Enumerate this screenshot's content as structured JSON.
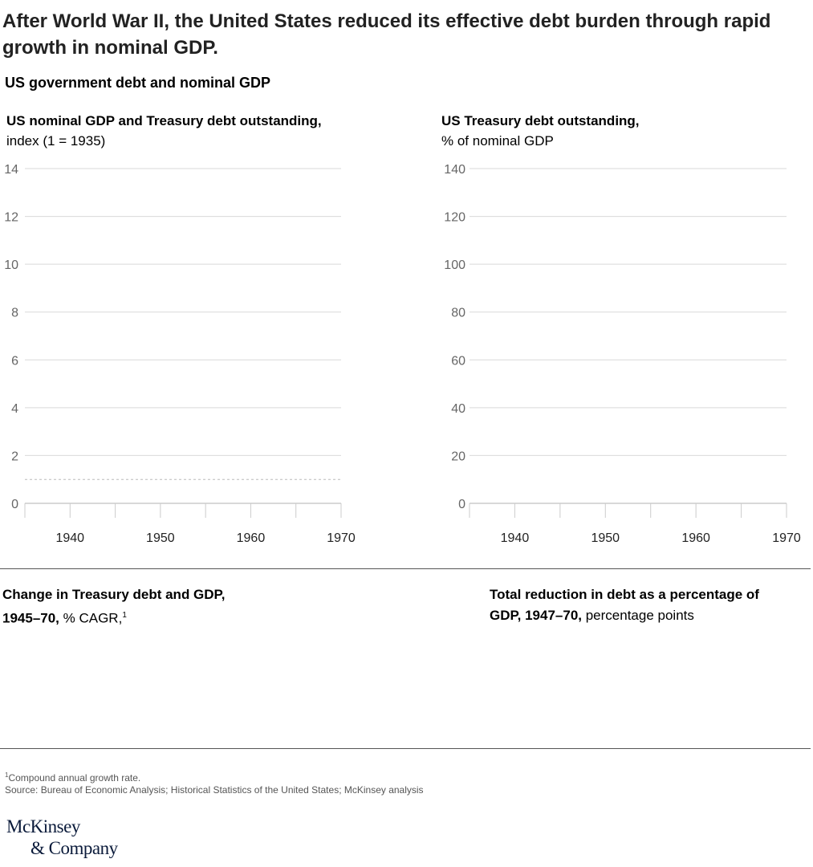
{
  "title": "After World War II, the United States reduced its effective debt burden through rapid growth in nominal GDP.",
  "subtitle": "US government debt and nominal GDP",
  "chart_data": [
    {
      "type": "line",
      "title": "US nominal GDP and Treasury debt outstanding,",
      "unit": "index (1 = 1935)",
      "xlim": [
        1935,
        1970
      ],
      "ylim": [
        0,
        14
      ],
      "x_ticks": [
        1940,
        1950,
        1960,
        1970
      ],
      "y_ticks": [
        0,
        2,
        4,
        6,
        8,
        10,
        12,
        14
      ],
      "reference_line": 1,
      "grid": true,
      "series": []
    },
    {
      "type": "line",
      "title": "US Treasury debt outstanding,",
      "unit": "% of nominal GDP",
      "xlim": [
        1935,
        1970
      ],
      "ylim": [
        0,
        140
      ],
      "x_ticks": [
        1940,
        1950,
        1960,
        1970
      ],
      "y_ticks": [
        0,
        20,
        40,
        60,
        80,
        100,
        120,
        140
      ],
      "grid": true,
      "series": []
    }
  ],
  "sections": {
    "left": {
      "bold": "Change in Treasury debt and GDP, 1945–70,",
      "rest": " % CAGR,",
      "sup": "1"
    },
    "right": {
      "bold": "Total reduction in debt as a percentage of GDP, 1947–70,",
      "rest": " percentage points"
    }
  },
  "footnotes": {
    "sup": "1",
    "note": "Compound annual growth rate.",
    "source": "Source: Bureau of Economic Analysis; Historical Statistics of the United States; McKinsey analysis"
  },
  "logo": {
    "line1": "McKinsey",
    "line2": "& Company"
  }
}
